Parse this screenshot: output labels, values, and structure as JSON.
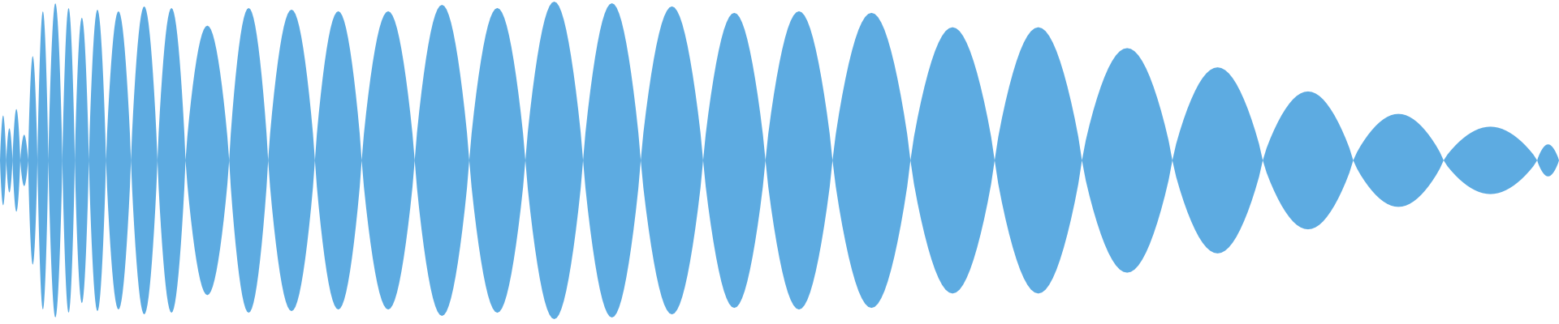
{
  "waveform": {
    "fill_color": "#5DABE1",
    "background_color": "#FFFFFF",
    "symmetric_about_center": true,
    "lobes": [
      {
        "from": 0.0,
        "to": 0.004,
        "amplitude": 0.28
      },
      {
        "from": 0.004,
        "to": 0.008,
        "amplitude": 0.2
      },
      {
        "from": 0.008,
        "to": 0.013,
        "amplitude": 0.32
      },
      {
        "from": 0.013,
        "to": 0.018,
        "amplitude": 0.16
      },
      {
        "from": 0.018,
        "to": 0.024,
        "amplitude": 0.65
      },
      {
        "from": 0.024,
        "to": 0.031,
        "amplitude": 0.93
      },
      {
        "from": 0.031,
        "to": 0.04,
        "amplitude": 0.98
      },
      {
        "from": 0.04,
        "to": 0.048,
        "amplitude": 0.95
      },
      {
        "from": 0.048,
        "to": 0.057,
        "amplitude": 0.89
      },
      {
        "from": 0.057,
        "to": 0.068,
        "amplitude": 0.94
      },
      {
        "from": 0.068,
        "to": 0.084,
        "amplitude": 0.93
      },
      {
        "from": 0.084,
        "to": 0.101,
        "amplitude": 0.96
      },
      {
        "from": 0.101,
        "to": 0.119,
        "amplitude": 0.95
      },
      {
        "from": 0.119,
        "to": 0.147,
        "amplitude": 0.84
      },
      {
        "from": 0.147,
        "to": 0.172,
        "amplitude": 0.95
      },
      {
        "from": 0.172,
        "to": 0.202,
        "amplitude": 0.94
      },
      {
        "from": 0.202,
        "to": 0.232,
        "amplitude": 0.93
      },
      {
        "from": 0.232,
        "to": 0.266,
        "amplitude": 0.93
      },
      {
        "from": 0.266,
        "to": 0.301,
        "amplitude": 0.97
      },
      {
        "from": 0.301,
        "to": 0.337,
        "amplitude": 0.95
      },
      {
        "from": 0.337,
        "to": 0.374,
        "amplitude": 0.99
      },
      {
        "from": 0.374,
        "to": 0.411,
        "amplitude": 0.98
      },
      {
        "from": 0.411,
        "to": 0.451,
        "amplitude": 0.96
      },
      {
        "from": 0.451,
        "to": 0.491,
        "amplitude": 0.92
      },
      {
        "from": 0.491,
        "to": 0.534,
        "amplitude": 0.93
      },
      {
        "from": 0.534,
        "to": 0.584,
        "amplitude": 0.92
      },
      {
        "from": 0.584,
        "to": 0.638,
        "amplitude": 0.83
      },
      {
        "from": 0.638,
        "to": 0.694,
        "amplitude": 0.83
      },
      {
        "from": 0.694,
        "to": 0.752,
        "amplitude": 0.7
      },
      {
        "from": 0.752,
        "to": 0.81,
        "amplitude": 0.58
      },
      {
        "from": 0.81,
        "to": 0.868,
        "amplitude": 0.43
      },
      {
        "from": 0.868,
        "to": 0.926,
        "amplitude": 0.29
      },
      {
        "from": 0.926,
        "to": 0.986,
        "amplitude": 0.21
      },
      {
        "from": 0.986,
        "to": 1.0,
        "amplitude": 0.1
      }
    ]
  }
}
